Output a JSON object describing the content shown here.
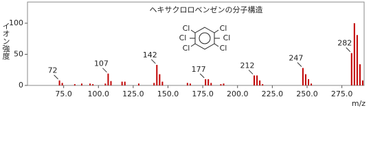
{
  "chart_data": {
    "type": "bar",
    "title": "ヘキサクロロベンゼンの分子構造",
    "y_label": "イオン強度",
    "x_label": "m/z",
    "structure_labels": [
      "Cl",
      "Cl",
      "Cl",
      "Cl",
      "Cl",
      "Cl"
    ],
    "x": [
      72,
      74,
      83,
      88,
      94,
      96,
      105,
      107,
      109,
      117,
      119,
      129,
      140,
      142,
      144,
      146,
      164,
      166,
      177,
      179,
      181,
      188,
      190,
      212,
      214,
      216,
      218,
      247,
      249,
      251,
      253,
      282,
      284,
      286,
      288,
      290
    ],
    "values": [
      8,
      4,
      2,
      3,
      3,
      2,
      3,
      19,
      7,
      6,
      6,
      3,
      4,
      33,
      18,
      6,
      4,
      3,
      10,
      10,
      4,
      2,
      3,
      16,
      16,
      8,
      2,
      28,
      18,
      10,
      3,
      52,
      100,
      81,
      34,
      8
    ],
    "peak_labels": [
      72,
      107,
      142,
      177,
      212,
      247,
      282
    ],
    "color": "#c00000",
    "xlim": [
      49,
      291
    ],
    "ylim": [
      0,
      134
    ],
    "xticks": [
      {
        "value": 75,
        "label": "75.0"
      },
      {
        "value": 100,
        "label": "100.0"
      },
      {
        "value": 125,
        "label": "125.0"
      },
      {
        "value": 150,
        "label": "150.0"
      },
      {
        "value": 175,
        "label": "175.0"
      },
      {
        "value": 200,
        "label": "200.0"
      },
      {
        "value": 225,
        "label": "225.0"
      },
      {
        "value": 250,
        "label": "250.0"
      },
      {
        "value": 275,
        "label": "275.0"
      }
    ],
    "yticks": [
      0,
      50,
      100
    ]
  }
}
